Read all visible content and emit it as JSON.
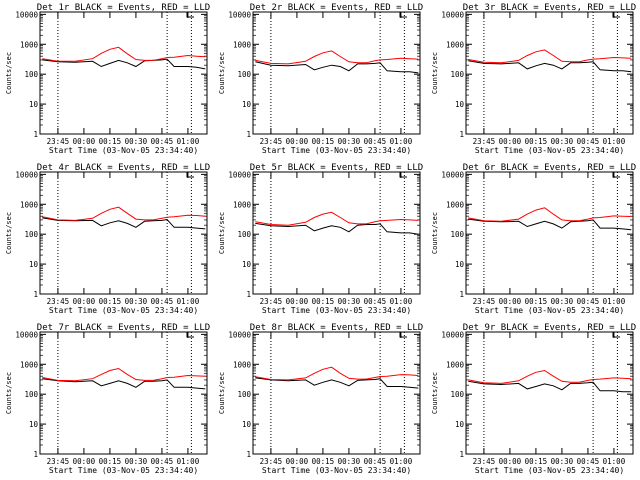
{
  "chart_data": [
    {
      "type": "line",
      "title": "Det 1r BLACK = Events, RED = LLD",
      "ylabel": "Counts/sec",
      "xlabel": "Start Time (03-Nov-05 23:34:40)",
      "yscale": "log",
      "ylim": [
        1,
        12000
      ],
      "xlim": [
        "23:34:40",
        "01:11:00"
      ],
      "yticks": [
        1,
        10,
        100,
        1000,
        10000
      ],
      "xticks": [
        "23:45",
        "00:00",
        "00:15",
        "00:30",
        "00:45",
        "01:00"
      ],
      "grid": false,
      "vlines": [
        "23:45",
        "00:48",
        "01:02"
      ],
      "x": [
        "23:36",
        "23:45",
        "23:55",
        "00:05",
        "00:10",
        "00:15",
        "00:20",
        "00:25",
        "00:30",
        "00:35",
        "00:40",
        "00:45",
        "00:48",
        "00:52",
        "01:00",
        "01:05",
        "01:10"
      ],
      "series": [
        {
          "name": "BLACK = Events",
          "color": "#000000",
          "values": [
            300,
            260,
            250,
            270,
            180,
            230,
            290,
            240,
            180,
            280,
            290,
            300,
            320,
            180,
            180,
            170,
            150
          ]
        },
        {
          "name": "RED = LLD",
          "color": "#ff0000",
          "values": [
            330,
            270,
            270,
            330,
            500,
            680,
            790,
            480,
            310,
            290,
            290,
            330,
            360,
            370,
            420,
            400,
            380
          ]
        }
      ]
    },
    {
      "type": "line",
      "title": "Det 2r BLACK = Events, RED = LLD",
      "ylabel": "Counts/sec",
      "xlabel": "Start Time (03-Nov-05 23:34:40)",
      "yscale": "log",
      "ylim": [
        1,
        12000
      ],
      "xlim": [
        "23:34:40",
        "01:11:00"
      ],
      "yticks": [
        1,
        10,
        100,
        1000,
        10000
      ],
      "xticks": [
        "23:45",
        "00:00",
        "00:15",
        "00:30",
        "00:45",
        "01:00"
      ],
      "grid": false,
      "vlines": [
        "23:45",
        "00:48",
        "01:02"
      ],
      "x": [
        "23:36",
        "23:45",
        "23:55",
        "00:05",
        "00:10",
        "00:15",
        "00:20",
        "00:25",
        "00:30",
        "00:35",
        "00:40",
        "00:45",
        "00:48",
        "00:52",
        "01:00",
        "01:05",
        "01:10"
      ],
      "series": [
        {
          "name": "BLACK = Events",
          "color": "#000000",
          "values": [
            260,
            200,
            190,
            210,
            140,
            170,
            200,
            180,
            130,
            220,
            220,
            230,
            240,
            130,
            120,
            120,
            110
          ]
        },
        {
          "name": "RED = LLD",
          "color": "#ff0000",
          "values": [
            290,
            230,
            220,
            270,
            390,
            520,
            600,
            390,
            260,
            240,
            240,
            280,
            300,
            310,
            340,
            330,
            320
          ]
        }
      ]
    },
    {
      "type": "line",
      "title": "Det 3r BLACK = Events, RED = LLD",
      "ylabel": "Counts/sec",
      "xlabel": "Start Time (03-Nov-05 23:34:40)",
      "yscale": "log",
      "ylim": [
        1,
        12000
      ],
      "xlim": [
        "23:34:40",
        "01:11:00"
      ],
      "yticks": [
        1,
        10,
        100,
        1000,
        10000
      ],
      "xticks": [
        "23:45",
        "00:00",
        "00:15",
        "00:30",
        "00:45",
        "01:00"
      ],
      "grid": false,
      "vlines": [
        "23:45",
        "00:48",
        "01:02"
      ],
      "x": [
        "23:36",
        "23:45",
        "23:55",
        "00:05",
        "00:10",
        "00:15",
        "00:20",
        "00:25",
        "00:30",
        "00:35",
        "00:40",
        "00:45",
        "00:48",
        "00:52",
        "01:00",
        "01:05",
        "01:10"
      ],
      "series": [
        {
          "name": "BLACK = Events",
          "color": "#000000",
          "values": [
            280,
            230,
            220,
            240,
            150,
            190,
            230,
            200,
            150,
            240,
            240,
            250,
            260,
            140,
            130,
            130,
            120
          ]
        },
        {
          "name": "RED = LLD",
          "color": "#ff0000",
          "values": [
            310,
            250,
            240,
            290,
            420,
            560,
            650,
            420,
            270,
            260,
            260,
            300,
            320,
            330,
            360,
            350,
            340
          ]
        }
      ]
    },
    {
      "type": "line",
      "title": "Det 4r BLACK = Events, RED = LLD",
      "ylabel": "Counts/sec",
      "xlabel": "Start Time (03-Nov-05 23:34:40)",
      "yscale": "log",
      "ylim": [
        1,
        12000
      ],
      "xlim": [
        "23:34:40",
        "01:11:00"
      ],
      "yticks": [
        1,
        10,
        100,
        1000,
        10000
      ],
      "xticks": [
        "23:45",
        "00:00",
        "00:15",
        "00:30",
        "00:45",
        "01:00"
      ],
      "grid": false,
      "vlines": [
        "23:45",
        "00:48",
        "01:02"
      ],
      "x": [
        "23:36",
        "23:45",
        "23:55",
        "00:05",
        "00:10",
        "00:15",
        "00:20",
        "00:25",
        "00:30",
        "00:35",
        "00:40",
        "00:45",
        "00:48",
        "00:52",
        "01:00",
        "01:05",
        "01:10"
      ],
      "series": [
        {
          "name": "BLACK = Events",
          "color": "#000000",
          "values": [
            350,
            290,
            280,
            290,
            190,
            240,
            280,
            230,
            170,
            270,
            280,
            290,
            310,
            170,
            170,
            160,
            150
          ]
        },
        {
          "name": "RED = LLD",
          "color": "#ff0000",
          "values": [
            380,
            300,
            290,
            340,
            500,
            680,
            800,
            500,
            320,
            300,
            300,
            340,
            370,
            380,
            430,
            420,
            400
          ]
        }
      ]
    },
    {
      "type": "line",
      "title": "Det 5r BLACK = Events, RED = LLD",
      "ylabel": "Counts/sec",
      "xlabel": "Start Time (03-Nov-05 23:34:40)",
      "yscale": "log",
      "ylim": [
        1,
        12000
      ],
      "xlim": [
        "23:34:40",
        "01:11:00"
      ],
      "yticks": [
        1,
        10,
        100,
        1000,
        10000
      ],
      "xticks": [
        "23:45",
        "00:00",
        "00:15",
        "00:30",
        "00:45",
        "01:00"
      ],
      "grid": false,
      "vlines": [
        "23:45",
        "00:48",
        "01:02"
      ],
      "x": [
        "23:36",
        "23:45",
        "23:55",
        "00:05",
        "00:10",
        "00:15",
        "00:20",
        "00:25",
        "00:30",
        "00:35",
        "00:40",
        "00:45",
        "00:48",
        "00:52",
        "01:00",
        "01:05",
        "01:10"
      ],
      "series": [
        {
          "name": "BLACK = Events",
          "color": "#000000",
          "values": [
            230,
            190,
            180,
            200,
            130,
            160,
            190,
            170,
            120,
            200,
            210,
            210,
            220,
            120,
            110,
            110,
            100
          ]
        },
        {
          "name": "RED = LLD",
          "color": "#ff0000",
          "values": [
            260,
            210,
            200,
            250,
            360,
            470,
            540,
            360,
            240,
            220,
            220,
            260,
            280,
            290,
            310,
            300,
            290
          ]
        }
      ]
    },
    {
      "type": "line",
      "title": "Det 6r BLACK = Events, RED = LLD",
      "ylabel": "Counts/sec",
      "xlabel": "Start Time (03-Nov-05 23:34:40)",
      "yscale": "log",
      "ylim": [
        1,
        12000
      ],
      "xlim": [
        "23:34:40",
        "01:11:00"
      ],
      "yticks": [
        1,
        10,
        100,
        1000,
        10000
      ],
      "xticks": [
        "23:45",
        "00:00",
        "00:15",
        "00:30",
        "00:45",
        "01:00"
      ],
      "grid": false,
      "vlines": [
        "23:45",
        "00:48",
        "01:02"
      ],
      "x": [
        "23:36",
        "23:45",
        "23:55",
        "00:05",
        "00:10",
        "00:15",
        "00:20",
        "00:25",
        "00:30",
        "00:35",
        "00:40",
        "00:45",
        "00:48",
        "00:52",
        "01:00",
        "01:05",
        "01:10"
      ],
      "series": [
        {
          "name": "BLACK = Events",
          "color": "#000000",
          "values": [
            320,
            270,
            260,
            270,
            180,
            220,
            270,
            220,
            160,
            260,
            270,
            280,
            300,
            160,
            160,
            150,
            140
          ]
        },
        {
          "name": "RED = LLD",
          "color": "#ff0000",
          "values": [
            350,
            280,
            270,
            320,
            470,
            640,
            760,
            470,
            300,
            280,
            280,
            320,
            350,
            360,
            410,
            400,
            390
          ]
        }
      ]
    },
    {
      "type": "line",
      "title": "Det 7r BLACK = Events, RED = LLD",
      "ylabel": "Counts/sec",
      "xlabel": "Start Time (03-Nov-05 23:34:40)",
      "yscale": "log",
      "ylim": [
        1,
        12000
      ],
      "xlim": [
        "23:34:40",
        "01:11:00"
      ],
      "yticks": [
        1,
        10,
        100,
        1000,
        10000
      ],
      "xticks": [
        "23:45",
        "00:00",
        "00:15",
        "00:30",
        "00:45",
        "01:00"
      ],
      "grid": false,
      "vlines": [
        "23:45",
        "00:48",
        "01:02"
      ],
      "x": [
        "23:36",
        "23:45",
        "23:55",
        "00:05",
        "00:10",
        "00:15",
        "00:20",
        "00:25",
        "00:30",
        "00:35",
        "00:40",
        "00:45",
        "00:48",
        "00:52",
        "01:00",
        "01:05",
        "01:10"
      ],
      "series": [
        {
          "name": "BLACK = Events",
          "color": "#000000",
          "values": [
            330,
            280,
            260,
            280,
            190,
            230,
            280,
            230,
            170,
            270,
            270,
            280,
            300,
            170,
            170,
            160,
            150
          ]
        },
        {
          "name": "RED = LLD",
          "color": "#ff0000",
          "values": [
            360,
            290,
            280,
            330,
            460,
            620,
            720,
            460,
            310,
            290,
            290,
            330,
            360,
            370,
            420,
            410,
            400
          ]
        }
      ]
    },
    {
      "type": "line",
      "title": "Det 8r BLACK = Events, RED = LLD",
      "ylabel": "Counts/sec",
      "xlabel": "Start Time (03-Nov-05 23:34:40)",
      "yscale": "log",
      "ylim": [
        1,
        12000
      ],
      "xlim": [
        "23:34:40",
        "01:11:00"
      ],
      "yticks": [
        1,
        10,
        100,
        1000,
        10000
      ],
      "xticks": [
        "23:45",
        "00:00",
        "00:15",
        "00:30",
        "00:45",
        "01:00"
      ],
      "grid": false,
      "vlines": [
        "23:45",
        "00:48",
        "01:02"
      ],
      "x": [
        "23:36",
        "23:45",
        "23:55",
        "00:05",
        "00:10",
        "00:15",
        "00:20",
        "00:25",
        "00:30",
        "00:35",
        "00:40",
        "00:45",
        "00:48",
        "00:52",
        "01:00",
        "01:05",
        "01:10"
      ],
      "series": [
        {
          "name": "BLACK = Events",
          "color": "#000000",
          "values": [
            350,
            300,
            280,
            300,
            200,
            250,
            300,
            250,
            190,
            290,
            300,
            310,
            330,
            180,
            180,
            170,
            160
          ]
        },
        {
          "name": "RED = LLD",
          "color": "#ff0000",
          "values": [
            380,
            310,
            300,
            350,
            500,
            680,
            800,
            500,
            340,
            320,
            320,
            360,
            390,
            400,
            450,
            440,
            420
          ]
        }
      ]
    },
    {
      "type": "line",
      "title": "Det 9r BLACK = Events, RED = LLD",
      "ylabel": "Counts/sec",
      "xlabel": "Start Time (03-Nov-05 23:34:40)",
      "yscale": "log",
      "ylim": [
        1,
        12000
      ],
      "xlim": [
        "23:34:40",
        "01:11:00"
      ],
      "yticks": [
        1,
        10,
        100,
        1000,
        10000
      ],
      "xticks": [
        "23:45",
        "00:00",
        "00:15",
        "00:30",
        "00:45",
        "01:00"
      ],
      "grid": false,
      "vlines": [
        "23:45",
        "00:48",
        "01:02"
      ],
      "x": [
        "23:36",
        "23:45",
        "23:55",
        "00:05",
        "00:10",
        "00:15",
        "00:20",
        "00:25",
        "00:30",
        "00:35",
        "00:40",
        "00:45",
        "00:48",
        "00:52",
        "01:00",
        "01:05",
        "01:10"
      ],
      "series": [
        {
          "name": "BLACK = Events",
          "color": "#000000",
          "values": [
            270,
            220,
            210,
            230,
            150,
            180,
            220,
            190,
            140,
            230,
            230,
            240,
            250,
            130,
            130,
            120,
            120
          ]
        },
        {
          "name": "RED = LLD",
          "color": "#ff0000",
          "values": [
            300,
            240,
            230,
            280,
            400,
            540,
            620,
            400,
            270,
            250,
            250,
            290,
            310,
            320,
            350,
            340,
            330
          ]
        }
      ]
    }
  ]
}
